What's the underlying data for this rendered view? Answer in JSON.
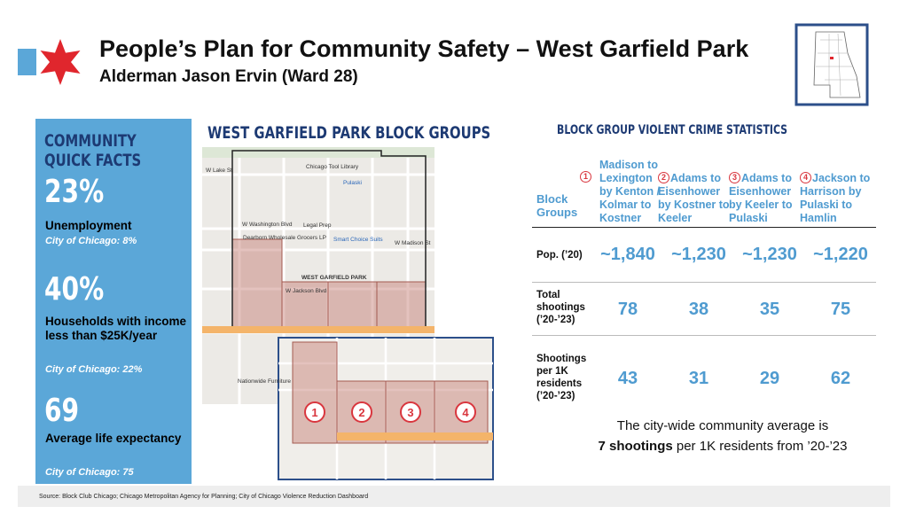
{
  "header": {
    "title": "People’s Plan for Community Safety – West Garfield Park",
    "subtitle": "Alderman Jason Ervin (Ward 28)"
  },
  "facts": {
    "heading": "COMMUNITY QUICK FACTS",
    "items": [
      {
        "value": "23%",
        "label": "Unemployment",
        "note": "City of Chicago: 8%"
      },
      {
        "value": "40%",
        "label": "Households with income less than $25K/year",
        "note": "City of Chicago: 22%"
      },
      {
        "value": "69",
        "label": "Average life expectancy",
        "note": "City of Chicago: 75"
      }
    ]
  },
  "map": {
    "title": "WEST GARFIELD PARK BLOCK GROUPS",
    "labels": [
      "W Lake St",
      "Chicago Tool Library",
      "Pulaski",
      "W Washington Blvd",
      "Legal Prep",
      "Dearborn Wholesale Grocers LP",
      "Smart Choice Suits",
      "W Madison St",
      "WEST GARFIELD PARK",
      "W Jackson Blvd",
      "Nationwide Furniture"
    ],
    "markers": [
      "1",
      "2",
      "3",
      "4"
    ]
  },
  "stats": {
    "title": "BLOCK GROUP VIOLENT CRIME STATISTICS",
    "table": {
      "header": "Block Groups",
      "columns": [
        {
          "number": "1",
          "label": "Madison to Lexington by Kenton / Kolmar to Kostner"
        },
        {
          "number": "2",
          "label": "Adams to Eisenhower by Kostner to Keeler"
        },
        {
          "number": "3",
          "label": "Adams to Eisenhower by Keeler to Pulaski"
        },
        {
          "number": "4",
          "label": "Jackson to Harrison by Pulaski to Hamlin"
        }
      ],
      "rows": [
        {
          "label": "Pop. (’20)",
          "cells": [
            "~1,840",
            "~1,230",
            "~1,230",
            "~1,220"
          ]
        },
        {
          "label": "Total shootings (’20-’23)",
          "cells": [
            78,
            38,
            35,
            75
          ]
        },
        {
          "label": "Shootings per 1K residents (’20-’23)",
          "cells": [
            43,
            31,
            29,
            62
          ]
        }
      ]
    },
    "note": {
      "line1": "The city-wide community average is",
      "bold": "7 shootings",
      "rest": "per 1K residents from ’20-’23"
    }
  },
  "footer": {
    "source": "Source: Block Club Chicago; Chicago Metropolitan Agency for Planning; City of Chicago Violence Reduction Dashboard"
  }
}
